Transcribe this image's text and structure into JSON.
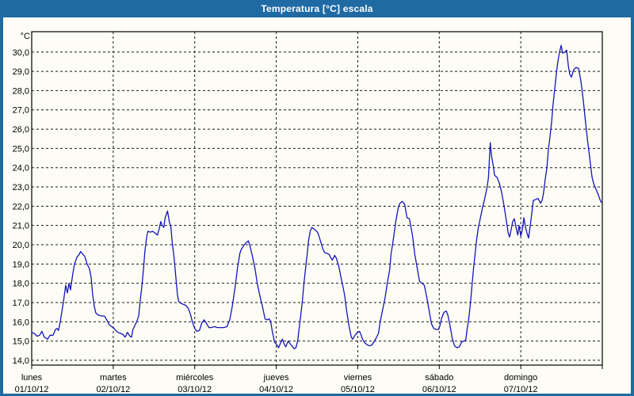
{
  "window": {
    "title": "Temperatura [°C] escala"
  },
  "colors": {
    "titlebar_bg": "#1F6AA3",
    "titlebar_text": "#FFFFFF",
    "window_border": "#1F6AA3",
    "background": "#FDFDF5",
    "grid": "#1A1A1A",
    "frame": "#000000",
    "line": "#1414BE",
    "label_text": "#000000"
  },
  "chart_data": {
    "type": "line",
    "title": "Temperatura [°C] escala",
    "ylabel": "°C",
    "y_unit_label": "°C",
    "grid": "dashed",
    "legend": "none",
    "ylim": [
      13.75,
      31.06
    ],
    "xlim_hours": [
      0,
      168
    ],
    "y_ticks": [
      {
        "value": 30,
        "label": "30,0"
      },
      {
        "value": 29,
        "label": "29,0"
      },
      {
        "value": 28,
        "label": "28,0"
      },
      {
        "value": 27,
        "label": "27,0"
      },
      {
        "value": 26,
        "label": "26,0"
      },
      {
        "value": 25,
        "label": "25,0"
      },
      {
        "value": 24,
        "label": "24,0"
      },
      {
        "value": 23,
        "label": "23,0"
      },
      {
        "value": 22,
        "label": "22,0"
      },
      {
        "value": 21,
        "label": "21,0"
      },
      {
        "value": 20,
        "label": "20,0"
      },
      {
        "value": 19,
        "label": "19,0"
      },
      {
        "value": 18,
        "label": "18,0"
      },
      {
        "value": 17,
        "label": "17,0"
      },
      {
        "value": 16,
        "label": "16,0"
      },
      {
        "value": 15,
        "label": "15,0"
      },
      {
        "value": 14,
        "label": "14,0"
      }
    ],
    "x_days": [
      {
        "name": "lunes",
        "date": "01/10/12",
        "start_hour": 0
      },
      {
        "name": "martes",
        "date": "02/10/12",
        "start_hour": 24
      },
      {
        "name": "miércoles",
        "date": "03/10/12",
        "start_hour": 48
      },
      {
        "name": "jueves",
        "date": "04/10/12",
        "start_hour": 72
      },
      {
        "name": "viernes",
        "date": "05/10/12",
        "start_hour": 96
      },
      {
        "name": "sábado",
        "date": "06/10/12",
        "start_hour": 120
      },
      {
        "name": "domingo",
        "date": "07/10/12",
        "start_hour": 144
      }
    ],
    "series": [
      {
        "name": "Temperatura",
        "color": "#1414BE",
        "points": [
          [
            0,
            15.45
          ],
          [
            0.7,
            15.4
          ],
          [
            1.6,
            15.25
          ],
          [
            2.3,
            15.3
          ],
          [
            3,
            15.5
          ],
          [
            3.7,
            15.2
          ],
          [
            4.7,
            15.1
          ],
          [
            5.4,
            15.3
          ],
          [
            6.3,
            15.3
          ],
          [
            7,
            15.6
          ],
          [
            7.5,
            15.65
          ],
          [
            7.9,
            15.55
          ],
          [
            8.4,
            16
          ],
          [
            9.3,
            17
          ],
          [
            10,
            17.9
          ],
          [
            10.5,
            17.5
          ],
          [
            11,
            18
          ],
          [
            11.4,
            17.65
          ],
          [
            12.1,
            18.5
          ],
          [
            12.6,
            19
          ],
          [
            13.3,
            19.35
          ],
          [
            14,
            19.5
          ],
          [
            14.4,
            19.65
          ],
          [
            15.1,
            19.5
          ],
          [
            15.6,
            19.4
          ],
          [
            16.3,
            19
          ],
          [
            17,
            18.75
          ],
          [
            17.5,
            18.3
          ],
          [
            17.9,
            17.5
          ],
          [
            18.4,
            16.8
          ],
          [
            18.9,
            16.45
          ],
          [
            19.6,
            16.35
          ],
          [
            20.5,
            16.3
          ],
          [
            21.4,
            16.3
          ],
          [
            22.1,
            16.1
          ],
          [
            22.8,
            15.85
          ],
          [
            23.5,
            15.75
          ],
          [
            24,
            15.7
          ],
          [
            24.7,
            15.55
          ],
          [
            25.4,
            15.45
          ],
          [
            26.1,
            15.4
          ],
          [
            26.8,
            15.35
          ],
          [
            27.5,
            15.2
          ],
          [
            28.2,
            15.45
          ],
          [
            28.9,
            15.25
          ],
          [
            29.4,
            15.2
          ],
          [
            29.8,
            15.6
          ],
          [
            30.5,
            15.85
          ],
          [
            31,
            16.05
          ],
          [
            31.5,
            16.3
          ],
          [
            31.9,
            17
          ],
          [
            32.4,
            17.8
          ],
          [
            32.9,
            18.7
          ],
          [
            33.3,
            19.6
          ],
          [
            33.8,
            20.35
          ],
          [
            34.2,
            20.7
          ],
          [
            34.9,
            20.65
          ],
          [
            35.6,
            20.7
          ],
          [
            36.3,
            20.6
          ],
          [
            37,
            20.5
          ],
          [
            37.5,
            20.8
          ],
          [
            38,
            21.2
          ],
          [
            38.4,
            21
          ],
          [
            38.9,
            20.9
          ],
          [
            39.3,
            21.4
          ],
          [
            40,
            21.75
          ],
          [
            40.5,
            21.2
          ],
          [
            41,
            20.9
          ],
          [
            41.4,
            20.1
          ],
          [
            41.9,
            19.35
          ],
          [
            42.4,
            18.4
          ],
          [
            42.9,
            17.4
          ],
          [
            43.3,
            17.05
          ],
          [
            44,
            16.95
          ],
          [
            44.7,
            16.9
          ],
          [
            45.4,
            16.85
          ],
          [
            46.1,
            16.7
          ],
          [
            46.8,
            16.35
          ],
          [
            47.3,
            16
          ],
          [
            48,
            15.65
          ],
          [
            48.7,
            15.5
          ],
          [
            49.4,
            15.55
          ],
          [
            50.1,
            15.95
          ],
          [
            50.8,
            16.1
          ],
          [
            51.5,
            15.9
          ],
          [
            52.2,
            15.7
          ],
          [
            52.9,
            15.7
          ],
          [
            53.8,
            15.75
          ],
          [
            54.7,
            15.7
          ],
          [
            55.7,
            15.7
          ],
          [
            56.6,
            15.7
          ],
          [
            57.5,
            15.75
          ],
          [
            58.3,
            16.1
          ],
          [
            59,
            16.75
          ],
          [
            59.9,
            17.8
          ],
          [
            60.6,
            18.8
          ],
          [
            61.3,
            19.55
          ],
          [
            61.7,
            19.75
          ],
          [
            62.4,
            19.95
          ],
          [
            63.1,
            20.1
          ],
          [
            63.8,
            20.2
          ],
          [
            64.3,
            19.9
          ],
          [
            64.8,
            19.55
          ],
          [
            65.7,
            18.8
          ],
          [
            66.4,
            18
          ],
          [
            67.1,
            17.4
          ],
          [
            68,
            16.75
          ],
          [
            68.7,
            16.15
          ],
          [
            69.4,
            16.1
          ],
          [
            69.9,
            16.15
          ],
          [
            70.3,
            16.05
          ],
          [
            70.8,
            15.55
          ],
          [
            71.5,
            14.95
          ],
          [
            72.2,
            14.8
          ],
          [
            72.7,
            14.65
          ],
          [
            73.4,
            14.95
          ],
          [
            73.8,
            15.1
          ],
          [
            74.3,
            14.85
          ],
          [
            74.8,
            14.7
          ],
          [
            75.5,
            15
          ],
          [
            75.9,
            14.9
          ],
          [
            76.6,
            14.75
          ],
          [
            77.3,
            14.6
          ],
          [
            77.8,
            14.65
          ],
          [
            78.3,
            15
          ],
          [
            78.7,
            15.6
          ],
          [
            79.2,
            16.3
          ],
          [
            79.7,
            17.1
          ],
          [
            80.1,
            17.9
          ],
          [
            80.6,
            18.7
          ],
          [
            81.1,
            19.5
          ],
          [
            81.5,
            20.2
          ],
          [
            82,
            20.7
          ],
          [
            82.5,
            20.9
          ],
          [
            83.2,
            20.8
          ],
          [
            83.9,
            20.7
          ],
          [
            84.3,
            20.6
          ],
          [
            85,
            20.2
          ],
          [
            85.7,
            19.8
          ],
          [
            86.2,
            19.6
          ],
          [
            86.9,
            19.55
          ],
          [
            87.6,
            19.5
          ],
          [
            88,
            19.35
          ],
          [
            88.5,
            19.2
          ],
          [
            89.2,
            19.45
          ],
          [
            89.7,
            19.3
          ],
          [
            90.4,
            18.9
          ],
          [
            91.3,
            18.1
          ],
          [
            91.8,
            17.7
          ],
          [
            92.2,
            17.3
          ],
          [
            92.7,
            16.6
          ],
          [
            93.4,
            15.8
          ],
          [
            94.1,
            15.2
          ],
          [
            94.5,
            15.1
          ],
          [
            95.2,
            15.3
          ],
          [
            95.9,
            15.45
          ],
          [
            96.5,
            15.5
          ],
          [
            96.9,
            15.35
          ],
          [
            97.4,
            15.1
          ],
          [
            98.1,
            14.9
          ],
          [
            98.8,
            14.8
          ],
          [
            99.5,
            14.75
          ],
          [
            100.2,
            14.8
          ],
          [
            100.9,
            15
          ],
          [
            101.4,
            15.15
          ],
          [
            102.1,
            15.4
          ],
          [
            102.6,
            16
          ],
          [
            103.3,
            16.6
          ],
          [
            104,
            17.2
          ],
          [
            104.7,
            18
          ],
          [
            105.4,
            18.7
          ],
          [
            105.8,
            19.5
          ],
          [
            106.5,
            20.3
          ],
          [
            107.2,
            21.2
          ],
          [
            107.9,
            21.9
          ],
          [
            108.4,
            22.15
          ],
          [
            109.1,
            22.25
          ],
          [
            109.8,
            22.1
          ],
          [
            110.5,
            21.4
          ],
          [
            111.2,
            21.35
          ],
          [
            112.1,
            20.5
          ],
          [
            112.8,
            19.5
          ],
          [
            113.5,
            18.8
          ],
          [
            114.2,
            18.1
          ],
          [
            114.9,
            18
          ],
          [
            115.6,
            17.9
          ],
          [
            116.3,
            17.3
          ],
          [
            117,
            16.6
          ],
          [
            117.7,
            15.9
          ],
          [
            118.4,
            15.65
          ],
          [
            119.1,
            15.6
          ],
          [
            119.8,
            15.6
          ],
          [
            120.2,
            15.8
          ],
          [
            120.7,
            16.2
          ],
          [
            121.4,
            16.5
          ],
          [
            122.1,
            16.55
          ],
          [
            122.6,
            16.3
          ],
          [
            123.1,
            15.85
          ],
          [
            123.8,
            15.15
          ],
          [
            124.5,
            14.75
          ],
          [
            125.2,
            14.65
          ],
          [
            125.9,
            14.7
          ],
          [
            126.6,
            14.95
          ],
          [
            127.3,
            15
          ],
          [
            127.8,
            15.05
          ],
          [
            128.2,
            15.6
          ],
          [
            128.7,
            16.2
          ],
          [
            129.2,
            17
          ],
          [
            129.6,
            17.8
          ],
          [
            130.1,
            18.8
          ],
          [
            130.6,
            19.6
          ],
          [
            131,
            20.25
          ],
          [
            131.5,
            20.9
          ],
          [
            132,
            21.3
          ],
          [
            132.7,
            21.9
          ],
          [
            133.4,
            22.4
          ],
          [
            134.1,
            23
          ],
          [
            134.5,
            23.5
          ],
          [
            135,
            25.3
          ],
          [
            135.4,
            24.6
          ],
          [
            135.9,
            24.1
          ],
          [
            136.3,
            23.6
          ],
          [
            137,
            23.5
          ],
          [
            137.7,
            23.2
          ],
          [
            138.4,
            22.7
          ],
          [
            139.1,
            22
          ],
          [
            139.8,
            21.2
          ],
          [
            140.3,
            20.6
          ],
          [
            140.7,
            20.4
          ],
          [
            141.2,
            20.8
          ],
          [
            141.6,
            21.2
          ],
          [
            142.1,
            21.35
          ],
          [
            142.6,
            20.9
          ],
          [
            143.1,
            20.5
          ],
          [
            143.5,
            21
          ],
          [
            144,
            20.45
          ],
          [
            144.5,
            20.8
          ],
          [
            144.9,
            21.4
          ],
          [
            145.4,
            20.9
          ],
          [
            145.9,
            20.55
          ],
          [
            146.3,
            20.35
          ],
          [
            146.8,
            21
          ],
          [
            147.2,
            21.6
          ],
          [
            147.7,
            22.3
          ],
          [
            148.4,
            22.35
          ],
          [
            149.1,
            22.4
          ],
          [
            149.8,
            22.15
          ],
          [
            150.3,
            22.3
          ],
          [
            150.7,
            22.7
          ],
          [
            151.2,
            23.4
          ],
          [
            151.7,
            24
          ],
          [
            152.1,
            24.9
          ],
          [
            152.6,
            25.6
          ],
          [
            153.1,
            26.4
          ],
          [
            153.5,
            27.3
          ],
          [
            154,
            28.1
          ],
          [
            154.5,
            28.9
          ],
          [
            154.9,
            29.5
          ],
          [
            155.4,
            30
          ],
          [
            155.9,
            30.35
          ],
          [
            156.3,
            29.95
          ],
          [
            157,
            30
          ],
          [
            157.5,
            30.1
          ],
          [
            158,
            29.3
          ],
          [
            158.4,
            28.85
          ],
          [
            158.9,
            28.7
          ],
          [
            159.6,
            29.1
          ],
          [
            160.3,
            29.2
          ],
          [
            161,
            29.15
          ],
          [
            161.7,
            28.5
          ],
          [
            162.4,
            27.5
          ],
          [
            163.1,
            26.3
          ],
          [
            163.8,
            25.2
          ],
          [
            164.5,
            24.2
          ],
          [
            165,
            23.5
          ],
          [
            165.4,
            23.2
          ],
          [
            166.1,
            22.9
          ],
          [
            166.8,
            22.6
          ],
          [
            167.3,
            22.35
          ],
          [
            167.7,
            22.2
          ]
        ]
      }
    ]
  }
}
